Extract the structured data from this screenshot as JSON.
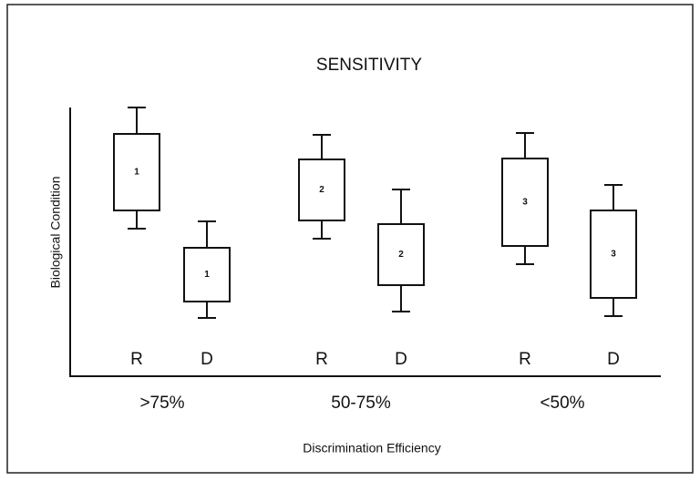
{
  "title": "SENSITIVITY",
  "y_label": "Biological Condition",
  "x_label": "Discrimination Efficiency",
  "groups": [
    {
      "label": ">75%",
      "boxes": [
        {
          "label": "R",
          "number": "1"
        },
        {
          "label": "D",
          "number": "1"
        }
      ]
    },
    {
      "label": "50-75%",
      "boxes": [
        {
          "label": "R",
          "number": "2"
        },
        {
          "label": "D",
          "number": "2"
        }
      ]
    },
    {
      "label": "<50%",
      "boxes": [
        {
          "label": "R",
          "number": "3"
        },
        {
          "label": "D",
          "number": "3"
        }
      ]
    }
  ]
}
